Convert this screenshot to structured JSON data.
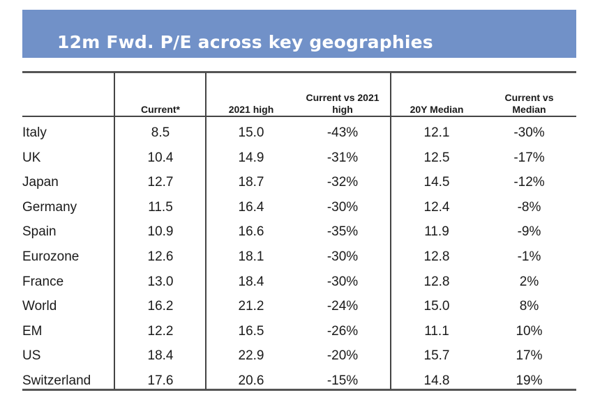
{
  "title": "12m Fwd. P/E across key geographies",
  "columns": [
    "",
    "Current*",
    "2021 high",
    "Current vs 2021\nhigh",
    "20Y Median",
    "Current vs\nMedian"
  ],
  "rows": [
    [
      "Italy",
      "8.5",
      "15.0",
      "-43%",
      "12.1",
      "-30%"
    ],
    [
      "UK",
      "10.4",
      "14.9",
      "-31%",
      "12.5",
      "-17%"
    ],
    [
      "Japan",
      "12.7",
      "18.7",
      "-32%",
      "14.5",
      "-12%"
    ],
    [
      "Germany",
      "11.5",
      "16.4",
      "-30%",
      "12.4",
      "-8%"
    ],
    [
      "Spain",
      "10.9",
      "16.6",
      "-35%",
      "11.9",
      "-9%"
    ],
    [
      "Eurozone",
      "12.6",
      "18.1",
      "-30%",
      "12.8",
      "-1%"
    ],
    [
      "France",
      "13.0",
      "18.4",
      "-30%",
      "12.8",
      "2%"
    ],
    [
      "World",
      "16.2",
      "21.2",
      "-24%",
      "15.0",
      "8%"
    ],
    [
      "EM",
      "12.2",
      "16.5",
      "-26%",
      "11.1",
      "10%"
    ],
    [
      "US",
      "18.4",
      "22.9",
      "-20%",
      "15.7",
      "17%"
    ],
    [
      "Switzerland",
      "17.6",
      "20.6",
      "-15%",
      "14.8",
      "19%"
    ]
  ],
  "colors": {
    "banner": "#7191c8",
    "title_text": "#ffffff",
    "rules": "#444444",
    "text": "#1a1a1a"
  }
}
